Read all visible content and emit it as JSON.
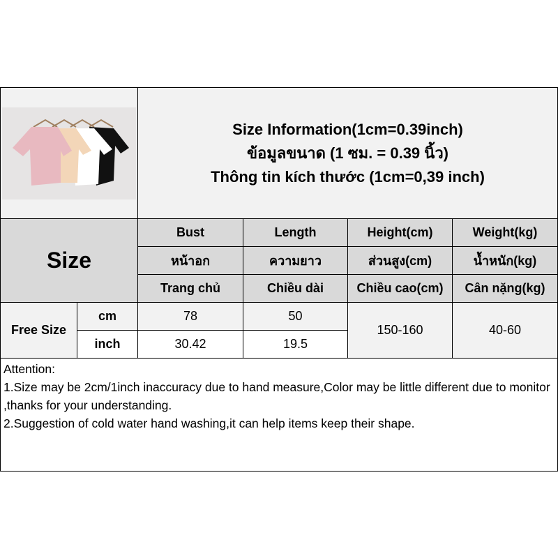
{
  "title": {
    "line1": "Size Information(1cm=0.39inch)",
    "line2": "ข้อมูลขนาด (1 ซม. = 0.39 นิ้ว)",
    "line3": "Thông tin kích thước (1cm=0,39 inch)"
  },
  "product_image": {
    "colors": [
      "#e8b9c0",
      "#f3d6b8",
      "#ffffff",
      "#111111"
    ]
  },
  "size_label": "Size",
  "headers": [
    [
      "Bust",
      "หน้าอก",
      "Trang chủ"
    ],
    [
      "Length",
      "ความยาว",
      "Chiều dài"
    ],
    [
      "Height(cm)",
      "ส่วนสูง(cm)",
      "Chiều cao(cm)"
    ],
    [
      "Weight(kg)",
      "น้ำหนัก(kg)",
      "Cân nặng(kg)"
    ]
  ],
  "row": {
    "size": "Free Size",
    "unit_cm": "cm",
    "unit_inch": "inch",
    "bust_cm": "78",
    "length_cm": "50",
    "bust_inch": "30.42",
    "length_inch": "19.5",
    "height": "150-160",
    "weight": "40-60"
  },
  "attention": {
    "heading": "Attention:",
    "line1": "1.Size may be 2cm/1inch inaccuracy due to hand measure,Color may be little different due to monitor ,thanks for your understanding.",
    "line2": "2.Suggestion of cold water hand washing,it can help items keep their shape."
  }
}
